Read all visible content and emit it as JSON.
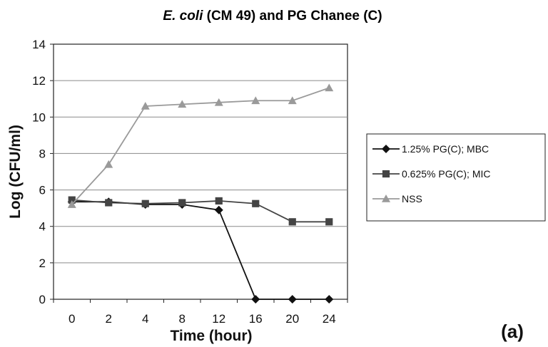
{
  "title": {
    "italic": "E. coli",
    "rest": " (CM 49) and PG Chanee (C)"
  },
  "panel_label": "(a)",
  "colors": {
    "series_mbc": "#111111",
    "series_mic": "#444444",
    "series_nss": "#9a9a9a",
    "grid": "#8a8a8a",
    "axis": "#222222"
  },
  "chart_data": {
    "type": "line",
    "xlabel": "Time (hour)",
    "ylabel": "Log (CFU/ml)",
    "x": [
      "0",
      "2",
      "4",
      "8",
      "12",
      "16",
      "20",
      "24"
    ],
    "ylim": [
      0,
      14
    ],
    "yticks": [
      0,
      2,
      4,
      6,
      8,
      10,
      12,
      14
    ],
    "grid": true,
    "legend_position": "right",
    "series": [
      {
        "name": "1.25% PG(C); MBC",
        "marker": "diamond",
        "values": [
          5.35,
          5.35,
          5.2,
          5.2,
          4.9,
          0,
          0,
          0
        ]
      },
      {
        "name": "0.625% PG(C); MIC",
        "marker": "square",
        "values": [
          5.45,
          5.3,
          5.25,
          5.3,
          5.4,
          5.25,
          4.25,
          4.25
        ]
      },
      {
        "name": "NSS",
        "marker": "triangle",
        "values": [
          5.2,
          7.4,
          10.6,
          10.7,
          10.8,
          10.9,
          10.9,
          11.6
        ]
      }
    ]
  }
}
